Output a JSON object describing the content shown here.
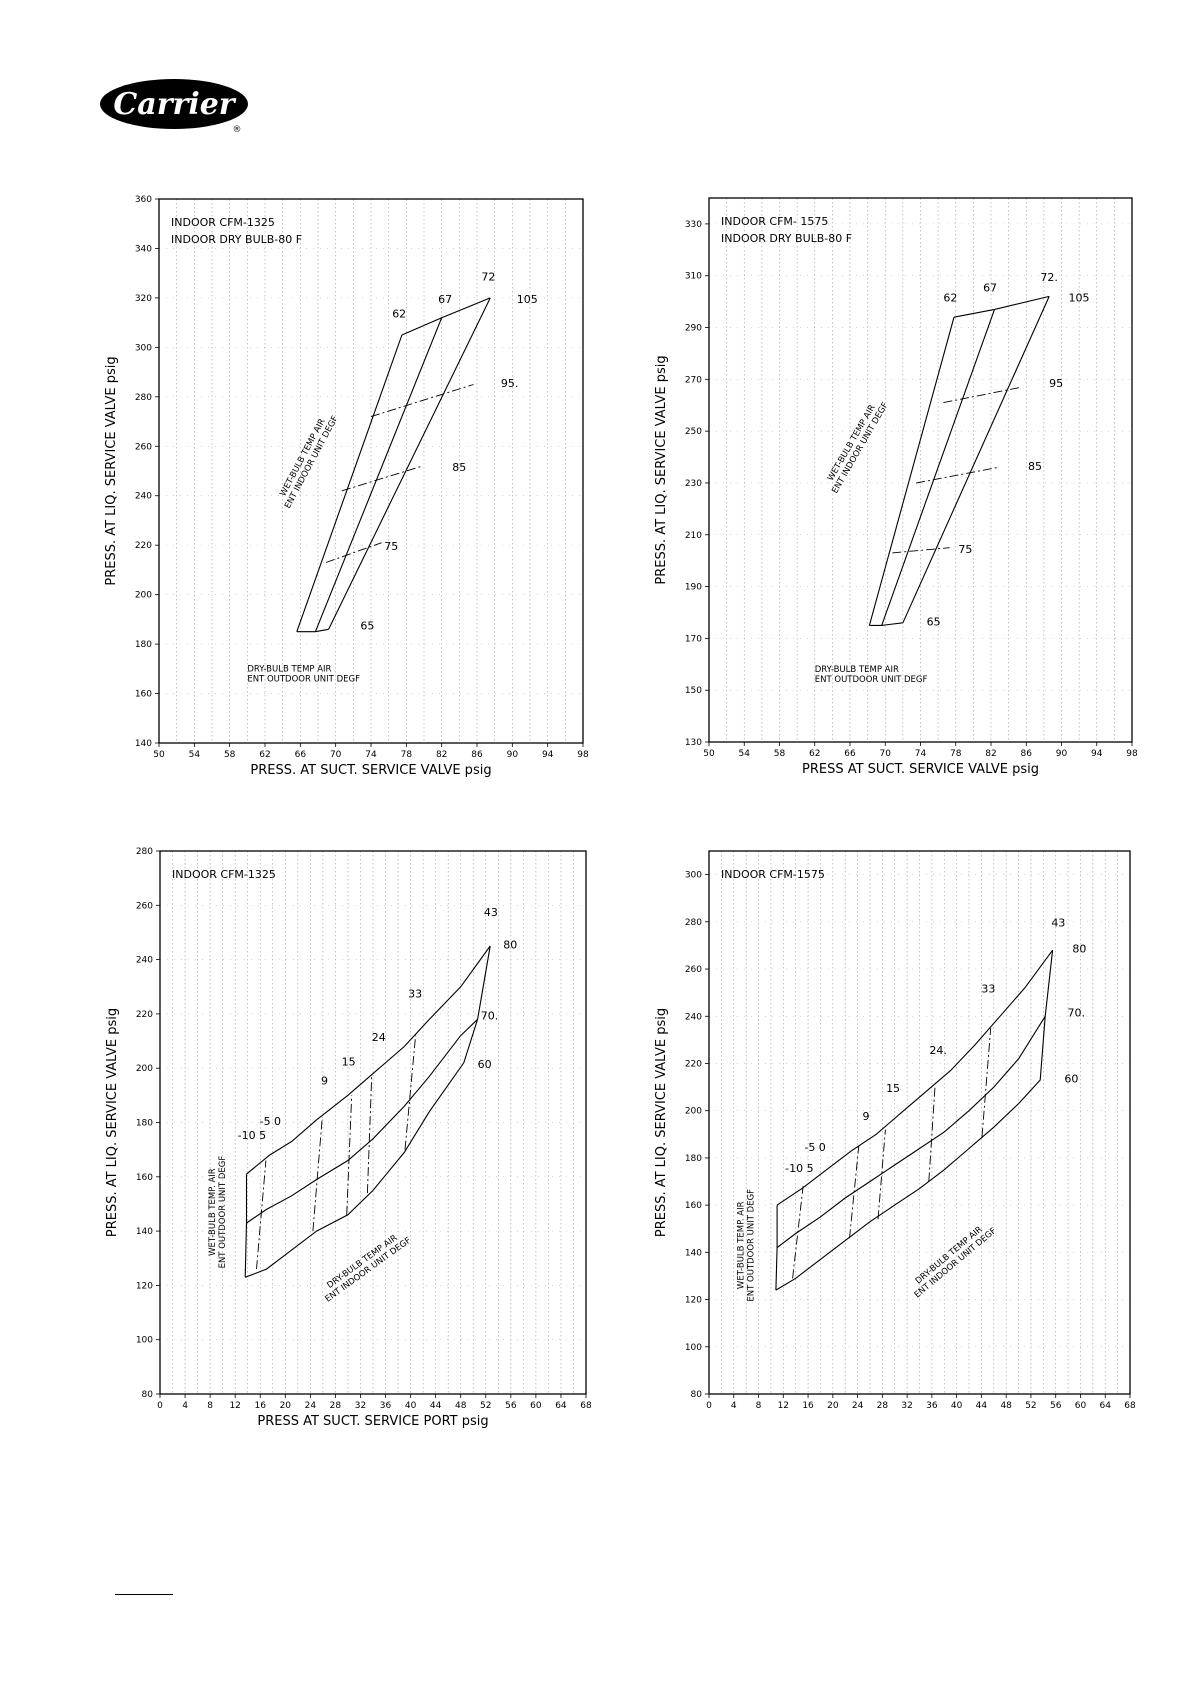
{
  "brand": {
    "logo_text": "Carrier",
    "registered_mark": "®"
  },
  "colors": {
    "ink": "#000000",
    "grid": "#9a9a9a",
    "background": "#ffffff"
  },
  "chart_data": [
    {
      "type": "line",
      "title_lines": [
        "INDOOR CFM-1325",
        "INDOOR DRY BULB-80 F"
      ],
      "xlabel": "PRESS. AT SUCT. SERVICE VALVE psig",
      "ylabel": "PRESS. AT LIQ. SERVICE VALVE psig",
      "xlim": [
        50,
        98
      ],
      "ylim": [
        140,
        360
      ],
      "xticks": [
        50,
        54,
        58,
        62,
        66,
        70,
        74,
        78,
        82,
        86,
        90,
        94,
        98
      ],
      "yticks": [
        140,
        160,
        180,
        200,
        220,
        240,
        260,
        280,
        300,
        320,
        340,
        360
      ],
      "grid": true,
      "series_solid": [
        {
          "name": "62",
          "points": [
            [
              65.6,
              185
            ],
            [
              77.5,
              305
            ]
          ]
        },
        {
          "name": "67",
          "points": [
            [
              67.7,
              185
            ],
            [
              82,
              312
            ]
          ]
        },
        {
          "name": "72",
          "points": [
            [
              69.2,
              186
            ],
            [
              87.5,
              320
            ]
          ]
        },
        {
          "name": "",
          "points": [
            [
              65.6,
              185
            ],
            [
              67.7,
              185
            ],
            [
              69.2,
              186
            ]
          ]
        },
        {
          "name": "",
          "points": [
            [
              77.5,
              305
            ],
            [
              82,
              312
            ],
            [
              87.5,
              320
            ]
          ]
        }
      ],
      "series_dashed": [
        {
          "name": "75",
          "points": [
            [
              68.9,
              213
            ],
            [
              75.2,
              221
            ]
          ]
        },
        {
          "name": "85",
          "points": [
            [
              70.7,
              242
            ],
            [
              79.8,
              252
            ]
          ]
        },
        {
          "name": "95",
          "points": [
            [
              74,
              272
            ],
            [
              85.6,
              285
            ]
          ]
        }
      ],
      "curve_labels": [
        {
          "text": "62",
          "x": 76.4,
          "y": 312
        },
        {
          "text": "67",
          "x": 81.6,
          "y": 318
        },
        {
          "text": "72",
          "x": 86.5,
          "y": 327
        },
        {
          "text": "105",
          "x": 90.5,
          "y": 318
        },
        {
          "text": "95.",
          "x": 88.7,
          "y": 284
        },
        {
          "text": "85",
          "x": 83.2,
          "y": 250
        },
        {
          "text": "75",
          "x": 75.5,
          "y": 218
        },
        {
          "text": "65",
          "x": 72.8,
          "y": 186
        }
      ],
      "inner_notes": [
        {
          "lines": [
            "WET-BULB TEMP AIR",
            "ENT INDOOR UNIT DEGF"
          ],
          "x": 66.5,
          "y": 255,
          "angle": -62
        },
        {
          "lines": [
            "DRY-BULB TEMP AIR",
            "ENT OUTDOOR UNIT DEGF"
          ],
          "x": 60,
          "y": 169,
          "angle": 0
        }
      ]
    },
    {
      "type": "line",
      "title_lines": [
        "INDOOR CFM- 1575",
        "INDOOR DRY BULB-80 F"
      ],
      "xlabel": "PRESS AT SUCT. SERVICE VALVE psig",
      "ylabel": "PRESS. AT LIQ. SERVICE VALVE psig",
      "xlim": [
        50,
        98
      ],
      "ylim": [
        130,
        340
      ],
      "xticks": [
        50,
        54,
        58,
        62,
        66,
        70,
        74,
        78,
        82,
        86,
        90,
        94,
        98
      ],
      "yticks": [
        130,
        150,
        170,
        190,
        210,
        230,
        250,
        270,
        290,
        310,
        330
      ],
      "grid": true,
      "series_solid": [
        {
          "name": "62",
          "points": [
            [
              68.2,
              175
            ],
            [
              77.8,
              294
            ]
          ]
        },
        {
          "name": "67",
          "points": [
            [
              69.6,
              175
            ],
            [
              82.4,
              297
            ]
          ]
        },
        {
          "name": "72",
          "points": [
            [
              72,
              176
            ],
            [
              88.6,
              302
            ]
          ]
        },
        {
          "name": "",
          "points": [
            [
              68.2,
              175
            ],
            [
              69.6,
              175
            ],
            [
              72,
              176
            ]
          ]
        },
        {
          "name": "",
          "points": [
            [
              77.8,
              294
            ],
            [
              82.4,
              297
            ],
            [
              88.6,
              302
            ]
          ]
        }
      ],
      "series_dashed": [
        {
          "name": "75",
          "points": [
            [
              70.8,
              203
            ],
            [
              77.3,
              205
            ]
          ]
        },
        {
          "name": "85",
          "points": [
            [
              73.5,
              230
            ],
            [
              82.8,
              236
            ]
          ]
        },
        {
          "name": "95",
          "points": [
            [
              76.6,
              261
            ],
            [
              85.5,
              267
            ]
          ]
        }
      ],
      "curve_labels": [
        {
          "text": "62",
          "x": 76.6,
          "y": 300
        },
        {
          "text": "67",
          "x": 81.1,
          "y": 304
        },
        {
          "text": "72.",
          "x": 87.6,
          "y": 308
        },
        {
          "text": "105",
          "x": 90.8,
          "y": 300
        },
        {
          "text": "95",
          "x": 88.6,
          "y": 267
        },
        {
          "text": "85",
          "x": 86.2,
          "y": 235
        },
        {
          "text": "75",
          "x": 78.3,
          "y": 203
        },
        {
          "text": "65",
          "x": 74.7,
          "y": 175
        }
      ],
      "inner_notes": [
        {
          "lines": [
            "WET-BULB TEMP AIR",
            "ENT INDOOR UNIT DEGF"
          ],
          "x": 66.4,
          "y": 245,
          "angle": -60
        },
        {
          "lines": [
            "DRY-BULB TEMP AIR",
            "ENT OUTDOOR UNIT DEGF"
          ],
          "x": 62,
          "y": 157,
          "angle": 0
        }
      ]
    },
    {
      "type": "line",
      "title_lines": [
        "INDOOR CFM-1325"
      ],
      "xlabel": "PRESS  AT SUCT. SERVICE PORT psig",
      "ylabel": "PRESS. AT LIQ. SERVICE VALVE psig",
      "xlim": [
        0,
        68
      ],
      "ylim": [
        80,
        280
      ],
      "xticks": [
        0,
        4,
        8,
        12,
        16,
        20,
        24,
        28,
        32,
        36,
        40,
        44,
        48,
        52,
        56,
        60,
        64,
        68
      ],
      "yticks": [
        80,
        100,
        120,
        140,
        160,
        180,
        200,
        220,
        240,
        260,
        280
      ],
      "grid": true,
      "series_solid": [
        {
          "name": "60",
          "points": [
            [
              13.6,
              123
            ],
            [
              17,
              126
            ],
            [
              21,
              133
            ],
            [
              25,
              140
            ],
            [
              30,
              146
            ],
            [
              34,
              155
            ],
            [
              39,
              169
            ],
            [
              43,
              184
            ],
            [
              48.5,
              202
            ],
            [
              50.7,
              218
            ],
            [
              52.7,
              245
            ]
          ]
        },
        {
          "name": "70",
          "points": [
            [
              13.8,
              143
            ],
            [
              17,
              148
            ],
            [
              21,
              153
            ],
            [
              25,
              159
            ],
            [
              30,
              166
            ],
            [
              34,
              174
            ],
            [
              39,
              186
            ],
            [
              43,
              197
            ],
            [
              48,
              212
            ],
            [
              50.7,
              218
            ]
          ]
        },
        {
          "name": "80",
          "points": [
            [
              13.8,
              161
            ],
            [
              17.5,
              168
            ],
            [
              21,
              173
            ],
            [
              25,
              181
            ],
            [
              30,
              190
            ],
            [
              34,
              198
            ],
            [
              39,
              208
            ],
            [
              43,
              218
            ],
            [
              48,
              230
            ],
            [
              52.7,
              245
            ]
          ]
        },
        {
          "name": "",
          "points": [
            [
              13.6,
              123
            ],
            [
              13.8,
              143
            ],
            [
              13.8,
              161
            ]
          ]
        }
      ],
      "series_dashed": [
        {
          "name": "-10",
          "points": [
            [
              15.4,
              126
            ],
            [
              16.9,
              166
            ]
          ]
        },
        {
          "name": "9",
          "points": [
            [
              24.4,
              140
            ],
            [
              25.9,
              182
            ]
          ]
        },
        {
          "name": "15",
          "points": [
            [
              29.8,
              146
            ],
            [
              30.6,
              190
            ]
          ]
        },
        {
          "name": "24",
          "points": [
            [
              33.1,
              154
            ],
            [
              33.8,
              197
            ]
          ]
        },
        {
          "name": "33",
          "points": [
            [
              39.1,
              170
            ],
            [
              40.8,
              212
            ]
          ]
        }
      ],
      "curve_labels": [
        {
          "text": "43",
          "x": 51.7,
          "y": 256
        },
        {
          "text": "80",
          "x": 54.8,
          "y": 244
        },
        {
          "text": "70.",
          "x": 51.2,
          "y": 218
        },
        {
          "text": "60",
          "x": 50.7,
          "y": 200
        },
        {
          "text": "33",
          "x": 39.6,
          "y": 226
        },
        {
          "text": "24",
          "x": 33.8,
          "y": 210
        },
        {
          "text": "15",
          "x": 29,
          "y": 201
        },
        {
          "text": "9",
          "x": 25.7,
          "y": 194
        },
        {
          "text": "-5 0",
          "x": 15.9,
          "y": 179
        },
        {
          "text": "-10 5",
          "x": 12.4,
          "y": 174
        }
      ],
      "inner_notes": [
        {
          "lines": [
            "WET-BULB TEMP. AIR",
            "ENT OUTDOOR UNIT DEGF"
          ],
          "x": 8.8,
          "y": 147,
          "angle": -90
        },
        {
          "lines": [
            "DRY-BULB TEMP AIR",
            "ENT INDOOR UNIT DEGF"
          ],
          "x": 32.5,
          "y": 128,
          "angle": -36
        }
      ]
    },
    {
      "type": "line",
      "title_lines": [
        "INDOOR CFM-1575"
      ],
      "xlabel": "",
      "ylabel": "PRESS. AT LIQ. SERVICE VALVE psig",
      "xlim": [
        0,
        68
      ],
      "ylim": [
        80,
        310
      ],
      "xticks": [
        0,
        4,
        8,
        12,
        16,
        20,
        24,
        28,
        32,
        36,
        40,
        44,
        48,
        52,
        56,
        60,
        64,
        68
      ],
      "yticks": [
        80,
        100,
        120,
        140,
        160,
        180,
        200,
        220,
        240,
        260,
        280,
        300
      ],
      "grid": true,
      "series_solid": [
        {
          "name": "60",
          "points": [
            [
              10.8,
              124
            ],
            [
              14,
              129
            ],
            [
              18,
              137
            ],
            [
              22,
              145
            ],
            [
              26,
              153
            ],
            [
              30,
              160
            ],
            [
              34,
              167
            ],
            [
              38,
              175
            ],
            [
              42,
              184
            ],
            [
              46,
              193
            ],
            [
              50,
              203
            ],
            [
              53.5,
              213
            ],
            [
              54.3,
              240
            ],
            [
              55.5,
              268
            ]
          ]
        },
        {
          "name": "70",
          "points": [
            [
              11,
              142
            ],
            [
              14,
              148
            ],
            [
              18,
              155
            ],
            [
              22,
              163
            ],
            [
              26,
              170
            ],
            [
              30,
              177
            ],
            [
              34,
              184
            ],
            [
              38,
              191
            ],
            [
              42,
              200
            ],
            [
              46,
              210
            ],
            [
              50,
              222
            ],
            [
              54.3,
              240
            ]
          ]
        },
        {
          "name": "80",
          "points": [
            [
              11,
              160
            ],
            [
              15,
              167
            ],
            [
              19,
              175
            ],
            [
              23,
              183
            ],
            [
              27,
              190
            ],
            [
              31,
              199
            ],
            [
              35,
              208
            ],
            [
              39,
              217
            ],
            [
              43,
              228
            ],
            [
              47,
              240
            ],
            [
              51,
              252
            ],
            [
              55.5,
              268
            ]
          ]
        },
        {
          "name": "",
          "points": [
            [
              10.8,
              124
            ],
            [
              11,
              142
            ],
            [
              11,
              160
            ]
          ]
        }
      ],
      "series_dashed": [
        {
          "name": "-10",
          "points": [
            [
              13.5,
              129
            ],
            [
              15.2,
              168
            ]
          ]
        },
        {
          "name": "9",
          "points": [
            [
              22.7,
              146
            ],
            [
              24.2,
              185
            ]
          ]
        },
        {
          "name": "15",
          "points": [
            [
              27.3,
              154
            ],
            [
              28.5,
              192
            ]
          ]
        },
        {
          "name": "24",
          "points": [
            [
              35.5,
              170
            ],
            [
              36.5,
              210
            ]
          ]
        },
        {
          "name": "33",
          "points": [
            [
              44.1,
              189
            ],
            [
              45.5,
              235
            ]
          ]
        }
      ],
      "curve_labels": [
        {
          "text": "43",
          "x": 55.3,
          "y": 278
        },
        {
          "text": "80",
          "x": 58.7,
          "y": 267
        },
        {
          "text": "70.",
          "x": 57.9,
          "y": 240
        },
        {
          "text": "60",
          "x": 57.4,
          "y": 212
        },
        {
          "text": "33",
          "x": 44,
          "y": 250
        },
        {
          "text": "24.",
          "x": 35.6,
          "y": 224
        },
        {
          "text": "15",
          "x": 28.6,
          "y": 208
        },
        {
          "text": "9",
          "x": 24.8,
          "y": 196
        },
        {
          "text": "-5 0",
          "x": 15.4,
          "y": 183
        },
        {
          "text": "-10 5",
          "x": 12.3,
          "y": 174
        }
      ],
      "inner_notes": [
        {
          "lines": [
            "WET-BULB TEMP. AIR",
            "ENT OUTDOOR UNIT DEGF"
          ],
          "x": 5.6,
          "y": 143,
          "angle": -90
        },
        {
          "lines": [
            "DRY-BULB TEMP AIR",
            "ENT INDOOR UNIT DEGF"
          ],
          "x": 39,
          "y": 138,
          "angle": -40
        }
      ]
    }
  ]
}
